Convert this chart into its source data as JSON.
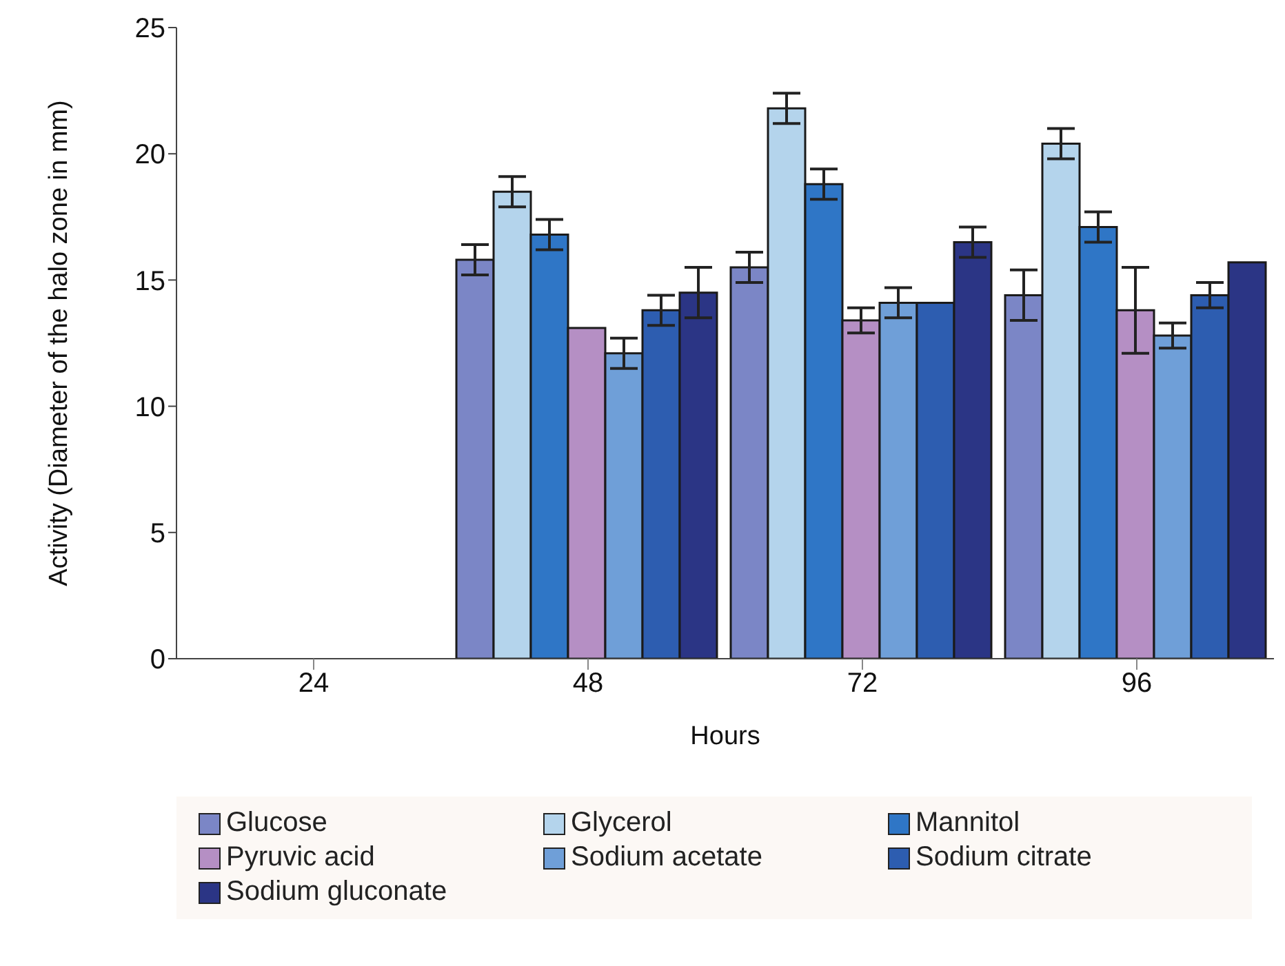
{
  "chart_data": {
    "type": "bar",
    "xlabel": "Hours",
    "ylabel": "Activity (Diameter of the halo zone in mm)",
    "categories": [
      "24",
      "48",
      "72",
      "96"
    ],
    "ylim": [
      0,
      25
    ],
    "yticks": [
      0,
      5,
      10,
      15,
      20,
      25
    ],
    "grid": false,
    "legend": "bottom",
    "series": [
      {
        "name": "Glucose",
        "color": "#7b86c6",
        "values": [
          0,
          15.8,
          15.5,
          14.4
        ],
        "errors": [
          null,
          0.6,
          0.6,
          1.0
        ]
      },
      {
        "name": "Glycerol",
        "color": "#b4d4ec",
        "values": [
          0,
          18.5,
          21.8,
          20.4
        ],
        "errors": [
          null,
          0.6,
          0.6,
          0.6
        ]
      },
      {
        "name": "Mannitol",
        "color": "#2f76c6",
        "values": [
          0,
          16.8,
          18.8,
          17.1
        ],
        "errors": [
          null,
          0.6,
          0.6,
          0.6
        ]
      },
      {
        "name": "Pyruvic acid",
        "color": "#b58fc4",
        "values": [
          0,
          13.1,
          13.4,
          13.8
        ],
        "errors": [
          null,
          null,
          0.5,
          1.7
        ]
      },
      {
        "name": "Sodium acetate",
        "color": "#6f9fd8",
        "values": [
          0,
          12.1,
          14.1,
          12.8
        ],
        "errors": [
          null,
          0.6,
          0.6,
          0.5
        ]
      },
      {
        "name": "Sodium citrate",
        "color": "#2d5db0",
        "values": [
          0,
          13.8,
          14.1,
          14.4
        ],
        "errors": [
          null,
          0.6,
          null,
          0.5
        ]
      },
      {
        "name": "Sodium gluconate",
        "color": "#2b3585",
        "values": [
          0,
          14.5,
          16.5,
          15.7
        ],
        "errors": [
          null,
          1.0,
          0.6,
          null
        ]
      }
    ]
  }
}
